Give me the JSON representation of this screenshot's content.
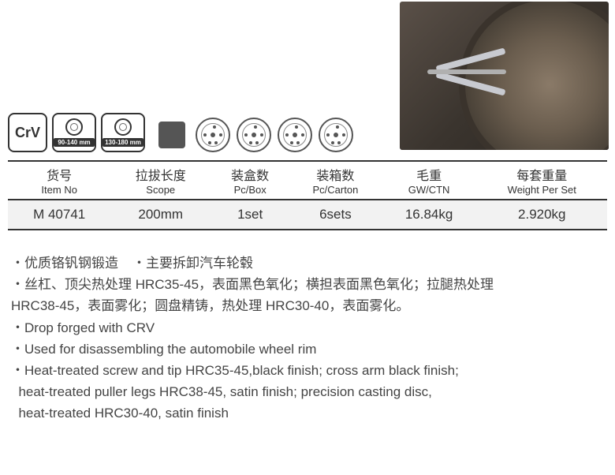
{
  "badges": {
    "crv": "CrV",
    "size1": "90-140 mm",
    "size2": "130-180 mm"
  },
  "table": {
    "headers": [
      {
        "cn": "货号",
        "en": "Item No"
      },
      {
        "cn": "拉拔长度",
        "en": "Scope"
      },
      {
        "cn": "装盒数",
        "en": "Pc/Box"
      },
      {
        "cn": "装箱数",
        "en": "Pc/Carton"
      },
      {
        "cn": "毛重",
        "en": "GW/CTN"
      },
      {
        "cn": "每套重量",
        "en": "Weight Per Set"
      }
    ],
    "row": {
      "item_no": "M 40741",
      "scope": "200mm",
      "pc_box": "1set",
      "pc_carton": "6sets",
      "gw": "16.84kg",
      "weight": "2.920kg"
    }
  },
  "desc": {
    "cn1a": "・优质铬钒钢锻造",
    "cn1b": "・主要拆卸汽车轮毂",
    "cn2": "・丝杠、顶尖热处理 HRC35-45，表面黑色氧化；横担表面黑色氧化；拉腿热处理",
    "cn3": "HRC38-45，表面雾化；圆盘精铸，热处理 HRC30-40，表面雾化。",
    "en1": "・Drop forged with CRV",
    "en2": "・Used for disassembling the automobile wheel rim",
    "en3": "・Heat-treated screw and tip HRC35-45,black finish; cross arm black finish;",
    "en4": "  heat-treated puller legs HRC38-45, satin finish; precision casting disc,",
    "en5": "  heat-treated HRC30-40, satin finish"
  }
}
